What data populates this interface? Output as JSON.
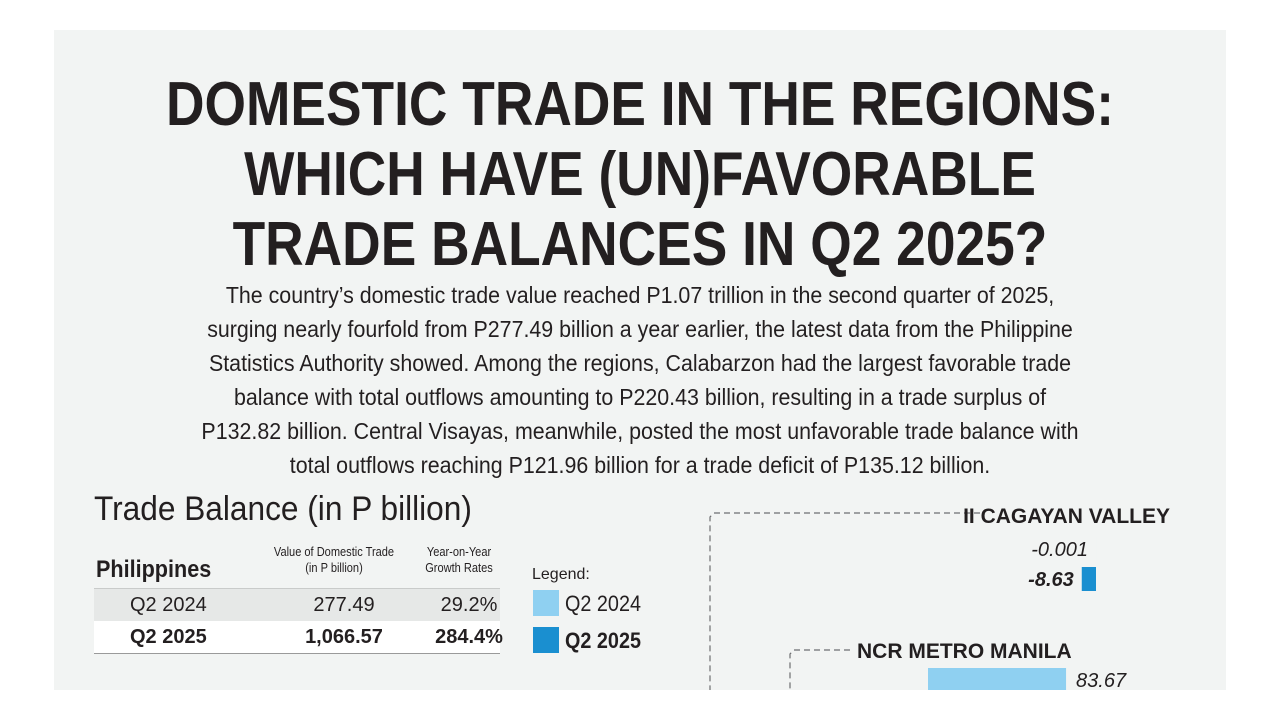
{
  "title_lines": [
    "DOMESTIC TRADE IN THE REGIONS:",
    "WHICH HAVE (UN)FAVORABLE",
    "TRADE BALANCES IN Q2 2025?"
  ],
  "intro_lines": [
    "The country’s domestic trade value reached P1.07 trillion in the second quarter of 2025,",
    "surging nearly fourfold from P277.49 billion a year earlier, the latest data from the Philippine",
    "Statistics Authority showed. Among the regions, Calabarzon had the largest favorable trade",
    "balance with total outflows amounting to P220.43 billion, resulting in a trade surplus of",
    "P132.82 billion. Central Visayas, meanwhile, posted the most unfavorable trade balance with",
    "total outflows reaching P121.96 billion for a trade deficit of P135.12 billion."
  ],
  "trade_balance_heading": "Trade Balance (in P billion)",
  "table": {
    "label": "Philippines",
    "col_value": [
      "Value of Domestic Trade",
      "(in P billion)"
    ],
    "col_growth": [
      "Year-on-Year",
      "Growth Rates"
    ],
    "rows": [
      {
        "quarter": "Q2 2024",
        "value": "277.49",
        "growth": "29.2%"
      },
      {
        "quarter": "Q2 2025",
        "value": "1,066.57",
        "growth": "284.4%"
      }
    ]
  },
  "legend": {
    "title": "Legend:",
    "items": [
      {
        "label": "Q2 2024",
        "color": "#8fd0f1"
      },
      {
        "label": "Q2 2025",
        "color": "#1a8fd0"
      }
    ]
  },
  "chart_data": {
    "type": "bar",
    "title": "Trade Balance (in P billion)",
    "series": [
      {
        "name": "Q2 2024",
        "color": "#8fd0f1"
      },
      {
        "name": "Q2 2025",
        "color": "#1a8fd0"
      }
    ],
    "regions": [
      {
        "name": "II CAGAYAN VALLEY",
        "values": [
          -0.001,
          -8.63
        ],
        "labels": [
          "-0.001",
          "-8.63"
        ]
      },
      {
        "name": "NCR METRO MANILA",
        "values": [
          83.67
        ],
        "labels": [
          "83.67"
        ]
      }
    ]
  }
}
